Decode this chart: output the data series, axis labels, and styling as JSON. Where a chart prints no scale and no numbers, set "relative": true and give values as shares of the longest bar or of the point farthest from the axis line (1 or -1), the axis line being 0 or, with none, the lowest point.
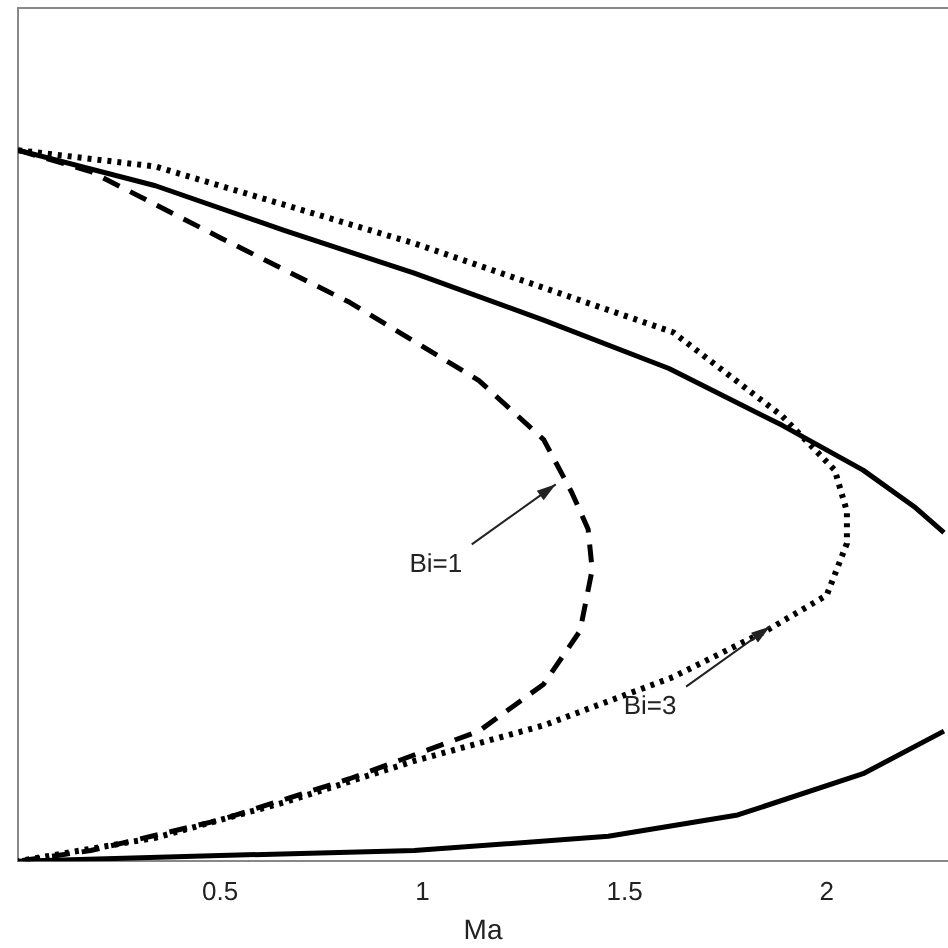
{
  "chart_data": {
    "type": "line",
    "xlabel": "Ma",
    "relative": true,
    "xlim": [
      0,
      2.3
    ],
    "xticks": [
      0.5,
      1,
      1.5,
      2
    ],
    "tick_labels": "x",
    "grid": false,
    "legend": false,
    "marker": "none",
    "series": [
      {
        "color": "#000000",
        "line_style": "solid",
        "x": [
          0,
          0.34,
          0.66,
          0.98,
          1.3,
          1.61,
          1.89,
          2.09,
          2.22,
          2.29,
          null,
          2.29,
          2.09,
          1.78,
          1.46,
          0.98,
          0.5,
          0
        ],
        "values": [
          1,
          0.95,
          0.887,
          0.827,
          0.761,
          0.693,
          0.613,
          0.55,
          0.497,
          0.462,
          null,
          0.183,
          0.123,
          0.065,
          0.035,
          0.015,
          0.008,
          0
        ]
      },
      {
        "color": "#000000",
        "line_style": "dashed",
        "x": [
          0,
          0.18,
          0.5,
          0.82,
          1.14,
          1.3,
          1.37,
          1.41,
          1.42,
          1.39,
          1.3,
          1.14,
          0.82,
          0.5,
          0.18,
          0
        ],
        "values": [
          1,
          0.97,
          0.877,
          0.786,
          0.676,
          0.593,
          0.518,
          0.467,
          0.41,
          0.324,
          0.249,
          0.183,
          0.116,
          0.058,
          0.015,
          0
        ]
      },
      {
        "color": "#000000",
        "line_style": "dotted",
        "x": [
          0,
          0.34,
          0.98,
          1.62,
          1.89,
          2.02,
          2.05,
          2.05,
          2,
          1.85,
          1.62,
          1.3,
          0.98,
          0.66,
          0.34,
          0
        ],
        "values": [
          1,
          0.977,
          0.869,
          0.744,
          0.626,
          0.55,
          0.492,
          0.447,
          0.374,
          0.324,
          0.259,
          0.191,
          0.141,
          0.083,
          0.033,
          0
        ]
      }
    ],
    "annotations": [
      {
        "text": "Bi=1",
        "x": 1.33,
        "y": 0.53
      },
      {
        "text": "Bi=3",
        "x": 1.86,
        "y": 0.33
      }
    ]
  }
}
